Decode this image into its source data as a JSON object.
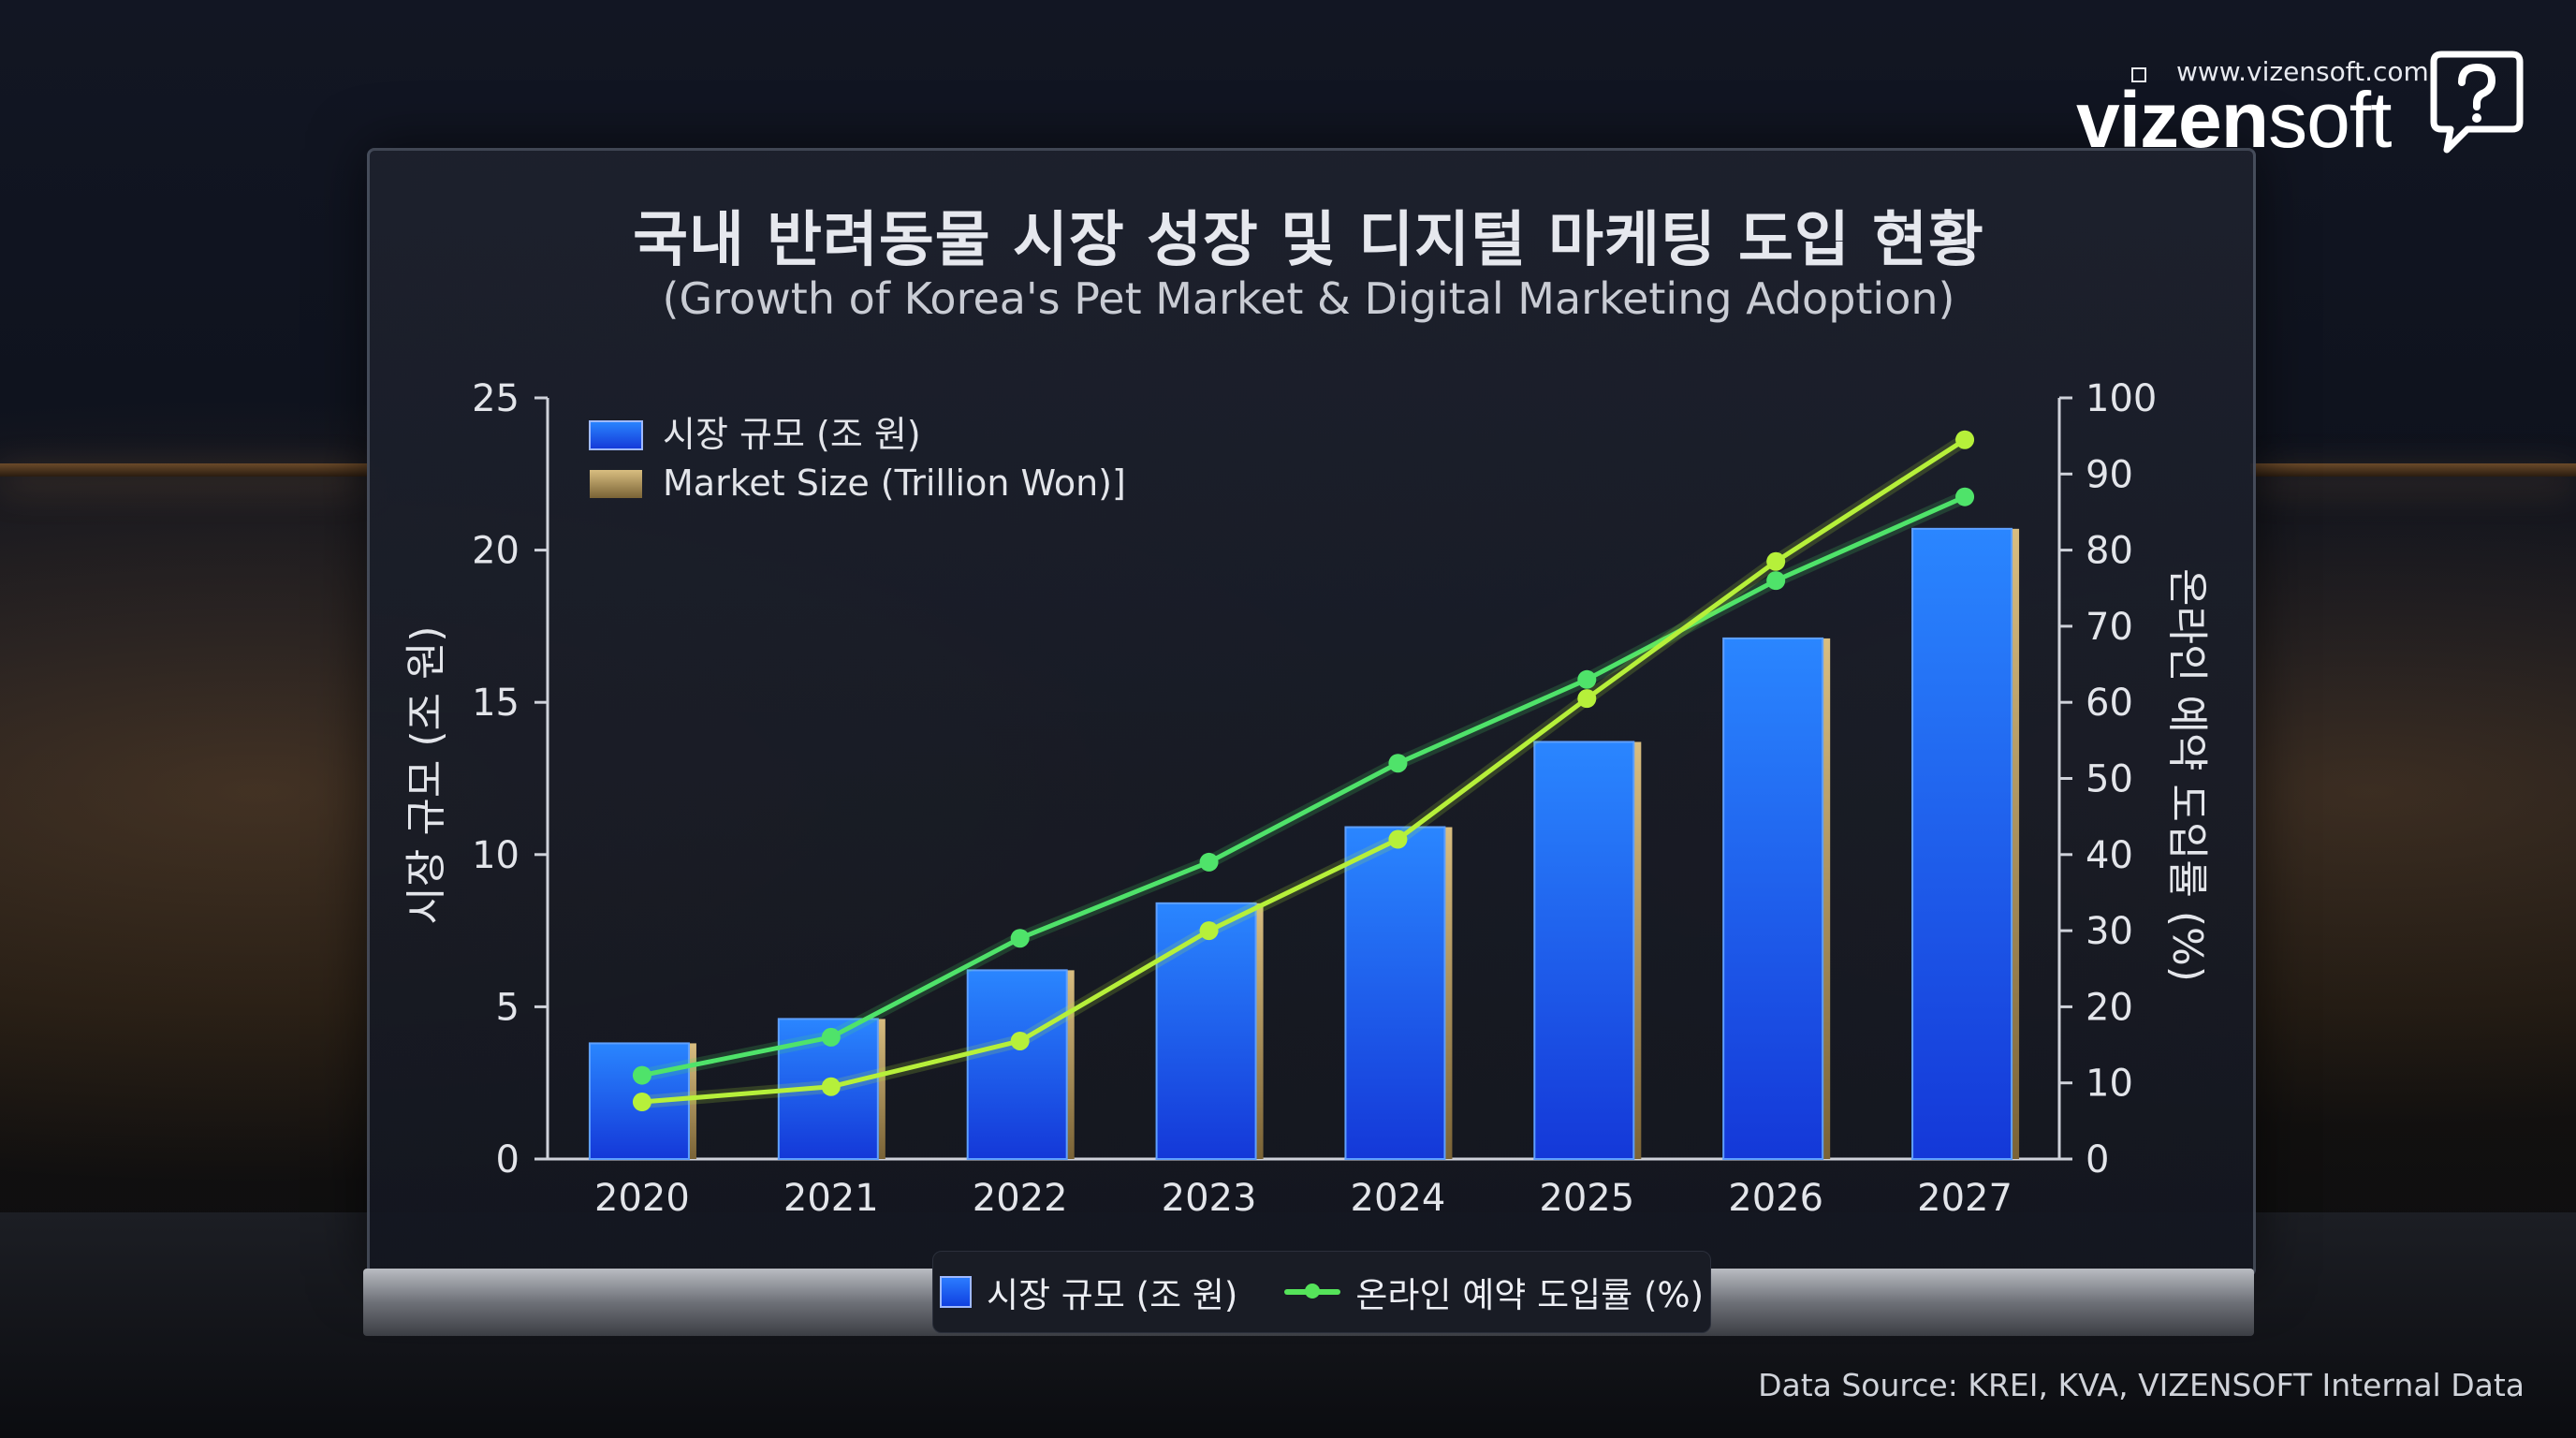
{
  "brand": {
    "url": "www.vizensoft.com",
    "name_bold": "vizen",
    "name_light": "soft",
    "logo_icon": "speech-bubble-question-icon"
  },
  "chart_data": {
    "type": "bar",
    "title": "국내 반려동물 시장 성장 및 디지털 마케팅 도입 현황",
    "subtitle": "(Growth of Korea's Pet Market & Digital Marketing Adoption)",
    "categories": [
      "2020",
      "2021",
      "2022",
      "2023",
      "2024",
      "2025",
      "2026",
      "2027"
    ],
    "series": [
      {
        "name": "시장 규모 (조 원)",
        "type": "bar",
        "axis": "left",
        "values": [
          3.8,
          4.6,
          6.2,
          8.4,
          10.9,
          13.7,
          17.1,
          20.7
        ]
      },
      {
        "name": "온라인 예약 도입률 (%)",
        "type": "line",
        "axis": "right",
        "values": [
          11,
          16,
          29,
          39,
          52,
          63,
          76,
          87
        ]
      },
      {
        "name": "온라인 예약 도입률 (%)",
        "type": "line",
        "axis": "right",
        "values": [
          7.5,
          9.5,
          15.5,
          30,
          42,
          60.5,
          78.5,
          94.5
        ]
      }
    ],
    "ylabel": "시장 규모 (조 원)",
    "ylim": [
      0,
      25
    ],
    "yticks": [
      0,
      5,
      10,
      15,
      20,
      25
    ],
    "y2label": "온라인 예약 도입률 (%)",
    "y2lim": [
      0,
      100
    ],
    "y2ticks": [
      0,
      10,
      20,
      30,
      40,
      50,
      60,
      70,
      80,
      90,
      100
    ],
    "legend_top": [
      "시장 규모 (조 원)",
      "Market Size (Trillion Won)]"
    ],
    "legend_bottom": {
      "bar": "시장 규모 (조 원)",
      "line": "온라인 예약 도입률 (%)"
    },
    "colors": {
      "bar_top": "#2a86ff",
      "bar_bottom": "#1438d8",
      "bar_edge": "#c8a765",
      "line1": "#4fe36a",
      "line2": "#b6f03a"
    },
    "source": "Data Source: KREI, KVA, VIZENSOFT Internal Data"
  }
}
